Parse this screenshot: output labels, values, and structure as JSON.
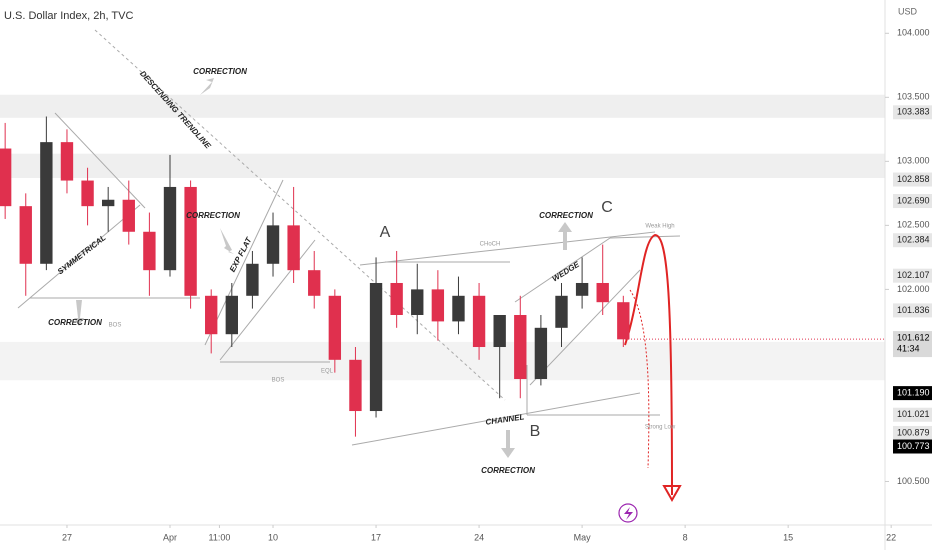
{
  "chart_data": {
    "type": "candlestick",
    "title": "U.S. Dollar Index, 2h, TVC",
    "currency": "USD",
    "countdown": "41:34",
    "up_color": "#3a3a3a",
    "down_color": "#e0304e",
    "ylim": [
      100.16,
      104.26
    ],
    "xlim": [
      -3.25,
      39.7
    ],
    "yticks": [
      {
        "value": 104,
        "label": "104.000"
      },
      {
        "value": 103.5,
        "label": "103.500"
      },
      {
        "value": 103,
        "label": "103.000"
      },
      {
        "value": 102.5,
        "label": "102.500"
      },
      {
        "value": 102,
        "label": "102.000"
      },
      {
        "value": 100.5,
        "label": "100.500"
      }
    ],
    "xticks": [
      {
        "value": 0,
        "label": "27"
      },
      {
        "value": 5,
        "label": "Apr"
      },
      {
        "value": 7.4,
        "label": "11:00"
      },
      {
        "value": 10,
        "label": "10"
      },
      {
        "value": 15,
        "label": "17"
      },
      {
        "value": 20,
        "label": "24"
      },
      {
        "value": 25,
        "label": "May"
      },
      {
        "value": 30,
        "label": "8"
      },
      {
        "value": 35,
        "label": "15"
      },
      {
        "value": 40,
        "label": "22"
      }
    ],
    "price_levels": [
      {
        "value": 103.383,
        "label": "103.383",
        "color": "#e6e6e6"
      },
      {
        "value": 102.858,
        "label": "102.858",
        "color": "#e6e6e6"
      },
      {
        "value": 102.69,
        "label": "102.690",
        "color": "#e6e6e6"
      },
      {
        "value": 102.384,
        "label": "102.384",
        "color": "#e6e6e6"
      },
      {
        "value": 102.107,
        "label": "102.107",
        "color": "#e6e6e6"
      },
      {
        "value": 101.836,
        "label": "101.836",
        "color": "#e6e6e6"
      },
      {
        "value": 101.19,
        "label": "101.190",
        "color": "#000000"
      },
      {
        "value": 101.021,
        "label": "101.021",
        "color": "#e6e6e6"
      },
      {
        "value": 100.879,
        "label": "100.879",
        "color": "#e6e6e6"
      },
      {
        "value": 100.773,
        "label": "100.773",
        "color": "#000000"
      }
    ],
    "last_price": {
      "value": 101.612,
      "label": "101.612"
    },
    "zones": [
      [
        103.52,
        103.34
      ],
      [
        103.06,
        102.87
      ],
      [
        101.59,
        101.29
      ]
    ],
    "candles": {
      "x": [
        -3,
        -2,
        -1,
        0,
        1,
        2,
        3,
        4,
        5,
        6,
        7,
        8,
        9,
        10,
        11,
        12,
        13,
        14,
        15,
        16,
        17,
        18,
        19,
        20,
        21,
        22,
        23,
        24,
        25,
        26,
        27
      ],
      "open": [
        103.1,
        102.65,
        102.2,
        103.15,
        102.85,
        102.65,
        102.7,
        102.45,
        102.15,
        102.8,
        101.95,
        101.65,
        101.95,
        102.2,
        102.5,
        102.15,
        101.95,
        101.45,
        101.05,
        102.05,
        101.8,
        102.0,
        101.75,
        101.95,
        101.55,
        101.8,
        101.3,
        101.7,
        101.95,
        102.05,
        101.9
      ],
      "high": [
        103.3,
        102.75,
        103.35,
        103.25,
        102.95,
        102.8,
        102.85,
        102.6,
        103.05,
        102.85,
        102.0,
        102.05,
        102.3,
        102.6,
        102.8,
        102.3,
        102.0,
        101.55,
        102.25,
        102.3,
        102.2,
        102.15,
        102.1,
        102.05,
        101.65,
        101.95,
        101.8,
        102.05,
        102.25,
        102.35,
        101.95
      ],
      "low": [
        102.55,
        101.95,
        102.15,
        102.75,
        102.5,
        102.45,
        102.35,
        101.95,
        102.1,
        101.85,
        101.5,
        101.55,
        101.85,
        102.1,
        102.05,
        101.85,
        101.35,
        100.85,
        101.0,
        101.7,
        101.65,
        101.6,
        101.65,
        101.45,
        101.15,
        101.15,
        101.25,
        101.55,
        101.85,
        101.8,
        101.55
      ],
      "close": [
        102.65,
        102.2,
        103.15,
        102.85,
        102.65,
        102.7,
        102.45,
        102.15,
        102.8,
        101.95,
        101.65,
        101.95,
        102.2,
        102.5,
        102.15,
        101.95,
        101.45,
        101.05,
        102.05,
        101.8,
        102.0,
        101.75,
        101.95,
        101.55,
        101.8,
        101.3,
        101.7,
        101.95,
        102.05,
        101.9,
        101.61
      ]
    },
    "annotations": [
      "CORRECTION",
      "DESCENDING TRENDLINE",
      "CORRECTION",
      "SYMMETRICAL",
      "CORRECTION",
      "EXP FLAT",
      "WEDGE",
      "CORRECTION",
      "CHANNEL",
      "CORRECTION",
      "A",
      "B",
      "C",
      "BOS",
      "BOS",
      "CHoCH",
      "Weak High",
      "Strong Low",
      "EQL"
    ]
  }
}
